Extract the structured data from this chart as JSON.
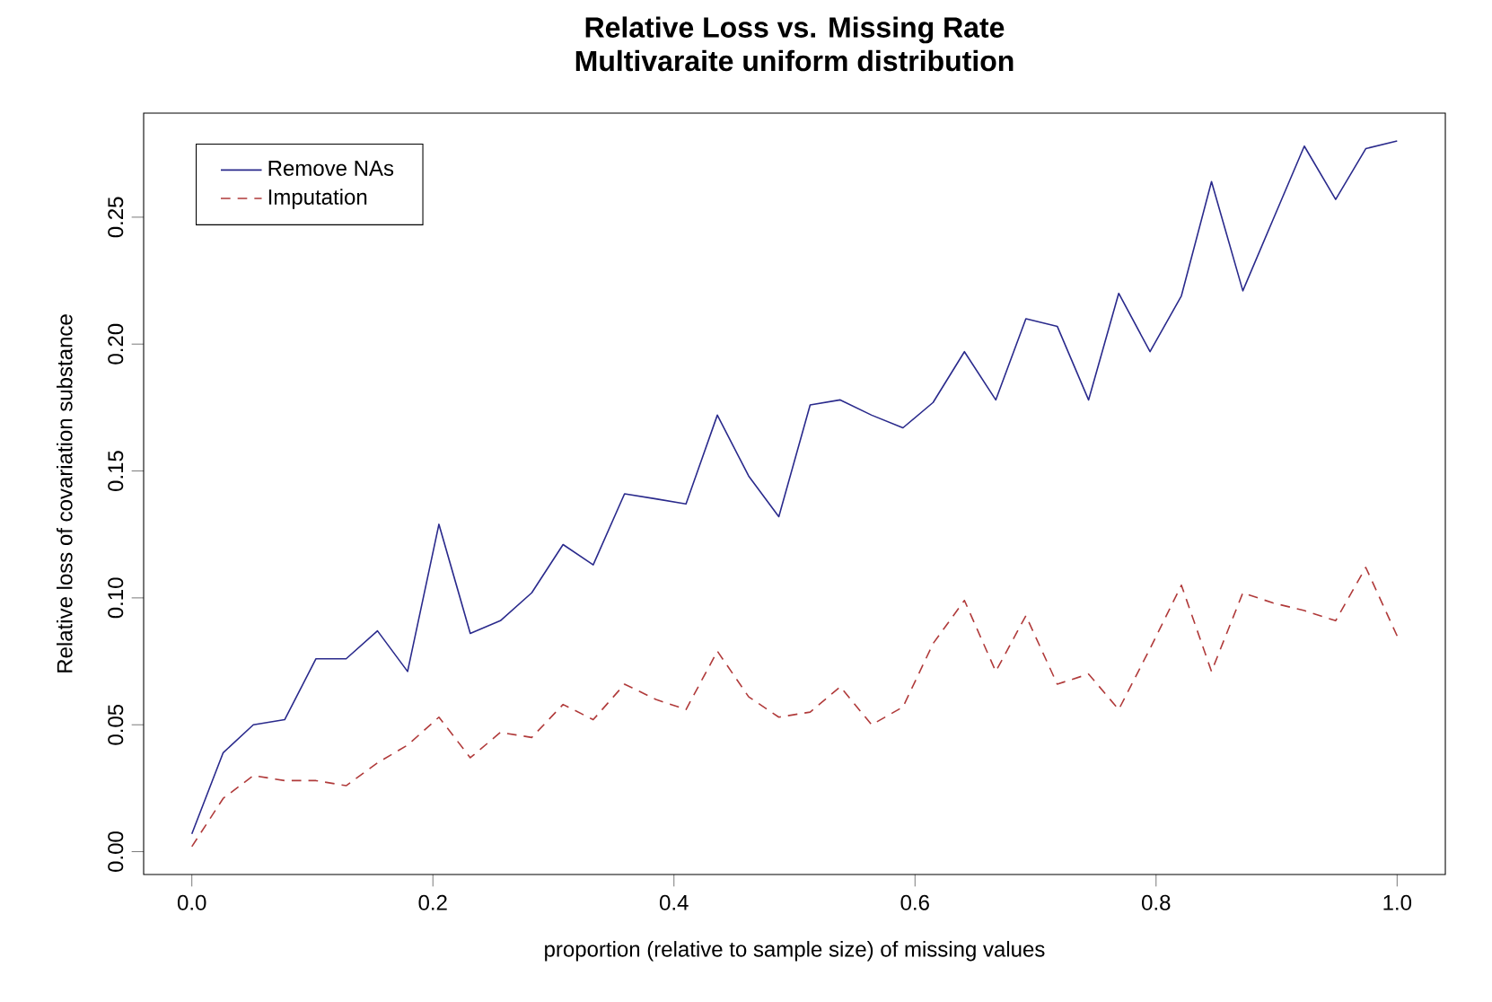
{
  "chart_data": {
    "type": "line",
    "title": "Relative Loss vs. Missing Rate",
    "subtitle": "Multivaraite uniform distribution",
    "xlabel": "proportion (relative to sample size) of missing values",
    "ylabel": "Relative loss of covariation substance",
    "x": [
      0,
      0.026,
      0.051,
      0.077,
      0.103,
      0.128,
      0.154,
      0.179,
      0.205,
      0.231,
      0.256,
      0.282,
      0.308,
      0.333,
      0.359,
      0.385,
      0.41,
      0.436,
      0.462,
      0.487,
      0.513,
      0.538,
      0.564,
      0.59,
      0.615,
      0.641,
      0.667,
      0.692,
      0.718,
      0.744,
      0.769,
      0.795,
      0.821,
      0.846,
      0.872,
      0.897,
      0.923,
      0.949,
      0.974,
      1
    ],
    "series": [
      {
        "name": "Remove NAs",
        "color": "#2a2a8c",
        "line_style": "solid",
        "values": [
          0.007,
          0.039,
          0.05,
          0.052,
          0.076,
          0.076,
          0.087,
          0.071,
          0.129,
          0.086,
          0.091,
          0.102,
          0.121,
          0.113,
          0.141,
          0.139,
          0.137,
          0.172,
          0.148,
          0.132,
          0.176,
          0.178,
          0.172,
          0.167,
          0.177,
          0.197,
          0.178,
          0.21,
          0.207,
          0.178,
          0.22,
          0.197,
          0.219,
          0.264,
          0.221,
          0.249,
          0.278,
          0.257,
          0.277,
          0.28
        ]
      },
      {
        "name": "Imputation",
        "color": "#b03a3a",
        "line_style": "dashed",
        "values": [
          0.002,
          0.021,
          0.03,
          0.028,
          0.028,
          0.026,
          0.035,
          0.042,
          0.053,
          0.037,
          0.047,
          0.045,
          0.058,
          0.052,
          0.066,
          0.06,
          0.056,
          0.079,
          0.061,
          0.053,
          0.055,
          0.065,
          0.05,
          0.057,
          0.082,
          0.099,
          0.071,
          0.093,
          0.066,
          0.07,
          0.056,
          0.08,
          0.105,
          0.071,
          0.102,
          0.098,
          0.095,
          0.091,
          0.112,
          0.085
        ]
      }
    ],
    "xlim": [
      -0.04,
      1.04
    ],
    "ylim": [
      -0.009,
      0.291
    ],
    "xticks": [
      {
        "value": 0,
        "label": "0.0"
      },
      0.2,
      0.4,
      0.6,
      0.8,
      {
        "value": 1,
        "label": "1.0"
      }
    ],
    "yticks": [
      {
        "value": 0,
        "label": "0.00"
      },
      0.05,
      {
        "value": 0.1,
        "label": "0.10"
      },
      0.15,
      {
        "value": 0.2,
        "label": "0.20"
      },
      0.25
    ],
    "legend": "top left"
  }
}
